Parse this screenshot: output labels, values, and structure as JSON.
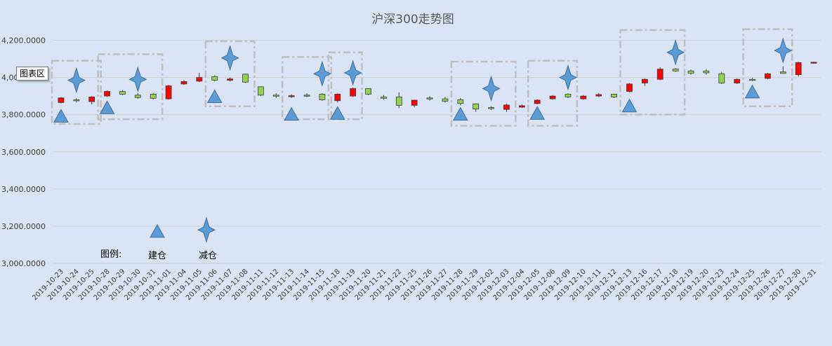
{
  "chart_data": {
    "type": "candlestick",
    "title": "沪深300走势图",
    "ylim": [
      3000,
      4300
    ],
    "yticks": [
      3000,
      3200,
      3400,
      3600,
      3800,
      4000,
      4200
    ],
    "ytick_labels": [
      "3,000.0000",
      "3,200.0000",
      "3,400.0000",
      "3,600.0000",
      "3,800.0000",
      "4,000.0000",
      "4,200.0000"
    ],
    "grid": true,
    "up_color": "#ff0000",
    "down_color": "#92d050",
    "marker_color": "#5b9bd5",
    "box_color": "#bfbfbf",
    "dates": [
      "2019-10-23",
      "2019-10-24",
      "2019-10-25",
      "2019-10-28",
      "2019-10-29",
      "2019-10-30",
      "2019-10-31",
      "2019-11-01",
      "2019-11-04",
      "2019-11-05",
      "2019-11-06",
      "2019-11-07",
      "2019-11-08",
      "2019-11-11",
      "2019-11-12",
      "2019-11-13",
      "2019-11-14",
      "2019-11-15",
      "2019-11-18",
      "2019-11-19",
      "2019-11-20",
      "2019-11-21",
      "2019-11-22",
      "2019-11-25",
      "2019-11-26",
      "2019-11-27",
      "2019-11-28",
      "2019-11-29",
      "2019-12-02",
      "2019-12-03",
      "2019-12-04",
      "2019-12-05",
      "2019-12-06",
      "2019-12-09",
      "2019-12-10",
      "2019-12-11",
      "2019-12-12",
      "2019-12-13",
      "2019-12-16",
      "2019-12-17",
      "2019-12-18",
      "2019-12-19",
      "2019-12-20",
      "2019-12-23",
      "2019-12-24",
      "2019-12-25",
      "2019-12-26",
      "2019-12-27",
      "2019-12-30",
      "2019-12-31"
    ],
    "candles": [
      {
        "o": 3865,
        "h": 3895,
        "l": 3860,
        "c": 3890
      },
      {
        "o": 3880,
        "h": 3888,
        "l": 3865,
        "c": 3875
      },
      {
        "o": 3870,
        "h": 3900,
        "l": 3855,
        "c": 3895
      },
      {
        "o": 3900,
        "h": 3930,
        "l": 3895,
        "c": 3925
      },
      {
        "o": 3925,
        "h": 3932,
        "l": 3905,
        "c": 3910
      },
      {
        "o": 3905,
        "h": 3915,
        "l": 3885,
        "c": 3892
      },
      {
        "o": 3910,
        "h": 3915,
        "l": 3882,
        "c": 3888
      },
      {
        "o": 3885,
        "h": 3960,
        "l": 3880,
        "c": 3955
      },
      {
        "o": 3965,
        "h": 3985,
        "l": 3960,
        "c": 3978
      },
      {
        "o": 3980,
        "h": 4025,
        "l": 3975,
        "c": 4000
      },
      {
        "o": 4005,
        "h": 4012,
        "l": 3980,
        "c": 3985
      },
      {
        "o": 3985,
        "h": 4000,
        "l": 3978,
        "c": 3992
      },
      {
        "o": 4018,
        "h": 4020,
        "l": 3970,
        "c": 3975
      },
      {
        "o": 3950,
        "h": 3952,
        "l": 3900,
        "c": 3905
      },
      {
        "o": 3905,
        "h": 3915,
        "l": 3890,
        "c": 3900
      },
      {
        "o": 3900,
        "h": 3910,
        "l": 3890,
        "c": 3902
      },
      {
        "o": 3905,
        "h": 3915,
        "l": 3895,
        "c": 3900
      },
      {
        "o": 3910,
        "h": 3915,
        "l": 3875,
        "c": 3880
      },
      {
        "o": 3875,
        "h": 3915,
        "l": 3865,
        "c": 3910
      },
      {
        "o": 3900,
        "h": 3945,
        "l": 3895,
        "c": 3940
      },
      {
        "o": 3940,
        "h": 3942,
        "l": 3905,
        "c": 3910
      },
      {
        "o": 3895,
        "h": 3905,
        "l": 3880,
        "c": 3888
      },
      {
        "o": 3895,
        "h": 3920,
        "l": 3835,
        "c": 3850
      },
      {
        "o": 3850,
        "h": 3880,
        "l": 3840,
        "c": 3878
      },
      {
        "o": 3890,
        "h": 3900,
        "l": 3875,
        "c": 3888
      },
      {
        "o": 3885,
        "h": 3895,
        "l": 3865,
        "c": 3872
      },
      {
        "o": 3880,
        "h": 3890,
        "l": 3850,
        "c": 3860
      },
      {
        "o": 3858,
        "h": 3860,
        "l": 3815,
        "c": 3830
      },
      {
        "o": 3838,
        "h": 3845,
        "l": 3825,
        "c": 3835
      },
      {
        "o": 3828,
        "h": 3860,
        "l": 3815,
        "c": 3852
      },
      {
        "o": 3840,
        "h": 3855,
        "l": 3835,
        "c": 3848
      },
      {
        "o": 3860,
        "h": 3882,
        "l": 3855,
        "c": 3878
      },
      {
        "o": 3885,
        "h": 3905,
        "l": 3880,
        "c": 3900
      },
      {
        "o": 3910,
        "h": 3915,
        "l": 3890,
        "c": 3895
      },
      {
        "o": 3885,
        "h": 3905,
        "l": 3880,
        "c": 3900
      },
      {
        "o": 3900,
        "h": 3915,
        "l": 3895,
        "c": 3908
      },
      {
        "o": 3910,
        "h": 3912,
        "l": 3890,
        "c": 3895
      },
      {
        "o": 3925,
        "h": 3970,
        "l": 3920,
        "c": 3965
      },
      {
        "o": 3970,
        "h": 3995,
        "l": 3955,
        "c": 3990
      },
      {
        "o": 3990,
        "h": 4055,
        "l": 3985,
        "c": 4045
      },
      {
        "o": 4045,
        "h": 4050,
        "l": 4030,
        "c": 4035
      },
      {
        "o": 4035,
        "h": 4042,
        "l": 4015,
        "c": 4022
      },
      {
        "o": 4035,
        "h": 4045,
        "l": 4015,
        "c": 4025
      },
      {
        "o": 4020,
        "h": 4030,
        "l": 3965,
        "c": 3970
      },
      {
        "o": 3970,
        "h": 3995,
        "l": 3965,
        "c": 3990
      },
      {
        "o": 3990,
        "h": 3998,
        "l": 3980,
        "c": 3988
      },
      {
        "o": 3995,
        "h": 4025,
        "l": 3990,
        "c": 4020
      },
      {
        "o": 4030,
        "h": 4060,
        "l": 4020,
        "c": 4022
      },
      {
        "o": 4015,
        "h": 4085,
        "l": 4005,
        "c": 4080
      },
      {
        "o": 4080,
        "h": 4085,
        "l": 4075,
        "c": 4082
      }
    ],
    "buy_markers": [
      {
        "date": "2019-10-23",
        "y": 3790
      },
      {
        "date": "2019-10-28",
        "y": 3835
      },
      {
        "date": "2019-11-06",
        "y": 3895
      },
      {
        "date": "2019-11-13",
        "y": 3800
      },
      {
        "date": "2019-11-18",
        "y": 3805
      },
      {
        "date": "2019-11-28",
        "y": 3800
      },
      {
        "date": "2019-12-05",
        "y": 3805
      },
      {
        "date": "2019-12-13",
        "y": 3845
      },
      {
        "date": "2019-12-25",
        "y": 3920
      }
    ],
    "sell_markers": [
      {
        "date": "2019-10-24",
        "y": 3985
      },
      {
        "date": "2019-10-30",
        "y": 3990
      },
      {
        "date": "2019-11-07",
        "y": 4105
      },
      {
        "date": "2019-11-15",
        "y": 4020
      },
      {
        "date": "2019-11-19",
        "y": 4025
      },
      {
        "date": "2019-12-02",
        "y": 3940
      },
      {
        "date": "2019-12-09",
        "y": 4000
      },
      {
        "date": "2019-12-18",
        "y": 4135
      },
      {
        "date": "2019-12-27",
        "y": 4145
      }
    ],
    "highlight_boxes": [
      {
        "from": "2019-10-23",
        "to": "2019-10-25",
        "ylo": 3750,
        "yhi": 4090
      },
      {
        "from": "2019-10-28",
        "to": "2019-10-31",
        "ylo": 3775,
        "yhi": 4125
      },
      {
        "from": "2019-11-06",
        "to": "2019-11-08",
        "ylo": 3845,
        "yhi": 4195
      },
      {
        "from": "2019-11-13",
        "to": "2019-11-15",
        "ylo": 3775,
        "yhi": 4110
      },
      {
        "from": "2019-11-18",
        "to": "2019-11-19",
        "ylo": 3775,
        "yhi": 4135
      },
      {
        "from": "2019-11-28",
        "to": "2019-12-03",
        "ylo": 3740,
        "yhi": 4085
      },
      {
        "from": "2019-12-05",
        "to": "2019-12-09",
        "ylo": 3740,
        "yhi": 4090
      },
      {
        "from": "2019-12-13",
        "to": "2019-12-18",
        "ylo": 3800,
        "yhi": 4255
      },
      {
        "from": "2019-12-25",
        "to": "2019-12-27",
        "ylo": 3845,
        "yhi": 4260
      }
    ],
    "legend": {
      "label": "图例:",
      "buy_label": "建仓",
      "sell_label": "减仓",
      "buy_y": 3170,
      "sell_y": 3180
    }
  },
  "tooltip": "图表区"
}
